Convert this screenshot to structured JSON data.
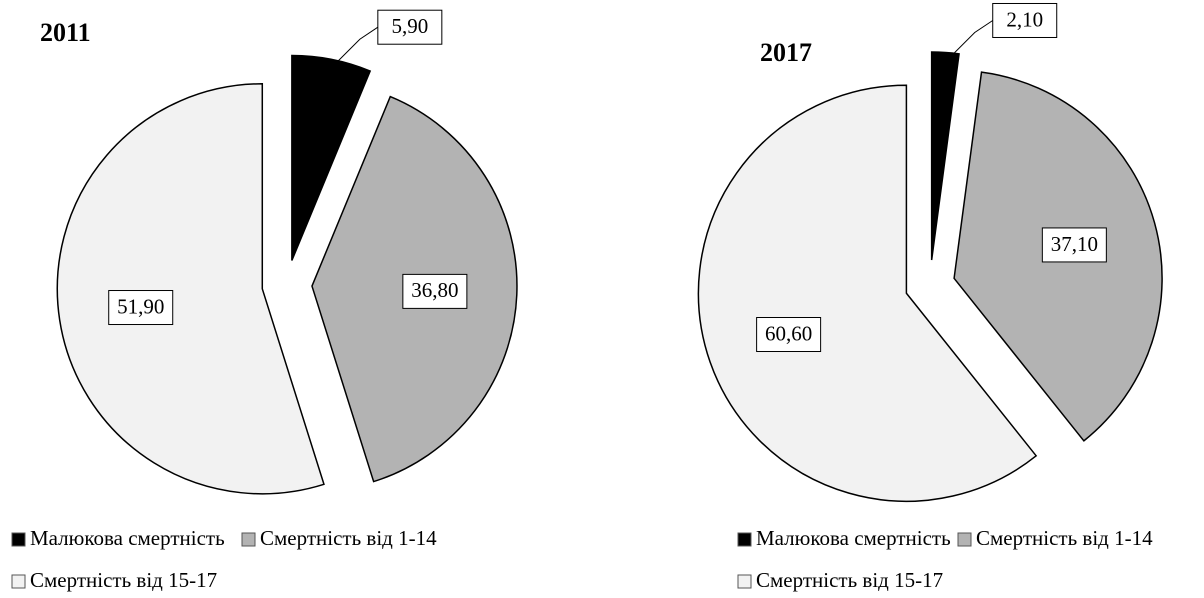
{
  "chart_data": [
    {
      "type": "pie",
      "title": "2011",
      "categories": [
        "Малюкова смертність",
        "Смертність від 1-14",
        "Смертність від 15-17"
      ],
      "values": [
        5.9,
        36.8,
        51.9
      ],
      "value_labels": [
        "5,90",
        "36,80",
        "51,90"
      ],
      "colors": [
        "#000000",
        "#b3b3b3",
        "#f2f2f2"
      ]
    },
    {
      "type": "pie",
      "title": "2017",
      "categories": [
        "Малюкова смертність",
        "Смертність від 1-14",
        "Смертність від 15-17"
      ],
      "values": [
        2.1,
        37.1,
        60.6
      ],
      "value_labels": [
        "2,10",
        "37,10",
        "60,60"
      ],
      "colors": [
        "#000000",
        "#b3b3b3",
        "#f2f2f2"
      ]
    }
  ]
}
